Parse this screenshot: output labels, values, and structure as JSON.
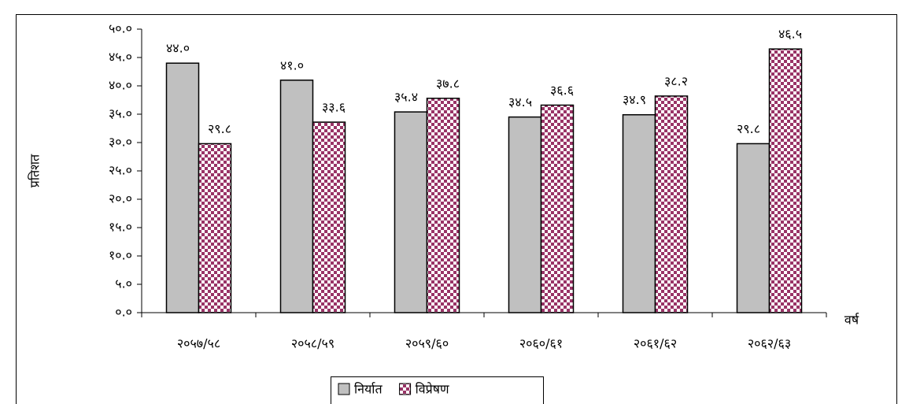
{
  "chart_data": {
    "type": "bar",
    "categories": [
      "२०५७/५८",
      "२०५८/५९",
      "२०५९/६०",
      "२०६०/६१",
      "२०६१/६२",
      "२०६२/६३"
    ],
    "series": [
      {
        "name": "निर्यात",
        "color": "#c0c0c0",
        "values": [
          44.0,
          41.0,
          35.4,
          34.5,
          34.9,
          29.8
        ],
        "value_labels": [
          "४४.०",
          "४१.०",
          "३५.४",
          "३४.५",
          "३४.९",
          "२९.८"
        ]
      },
      {
        "name": "विप्रेषण",
        "color": "#993366",
        "values": [
          29.8,
          33.6,
          37.8,
          36.6,
          38.2,
          46.5
        ],
        "value_labels": [
          "२९.८",
          "३३.६",
          "३७.८",
          "३६.६",
          "३८.२",
          "४६.५"
        ]
      }
    ],
    "y_label": "प्रतिशत",
    "x_label": "वर्ष",
    "ylim": [
      0,
      50
    ],
    "yticks": [
      {
        "value": 0,
        "label": "०.०"
      },
      {
        "value": 5,
        "label": "५.०"
      },
      {
        "value": 10,
        "label": "१०.०"
      },
      {
        "value": 15,
        "label": "१५.०"
      },
      {
        "value": 20,
        "label": "२०.०"
      },
      {
        "value": 25,
        "label": "२५.०"
      },
      {
        "value": 30,
        "label": "३०.०"
      },
      {
        "value": 35,
        "label": "३५.०"
      },
      {
        "value": 40,
        "label": "४०.०"
      },
      {
        "value": 45,
        "label": "४५.०"
      },
      {
        "value": 50,
        "label": "५०.०"
      }
    ],
    "legend": "bottom",
    "grid": false
  }
}
